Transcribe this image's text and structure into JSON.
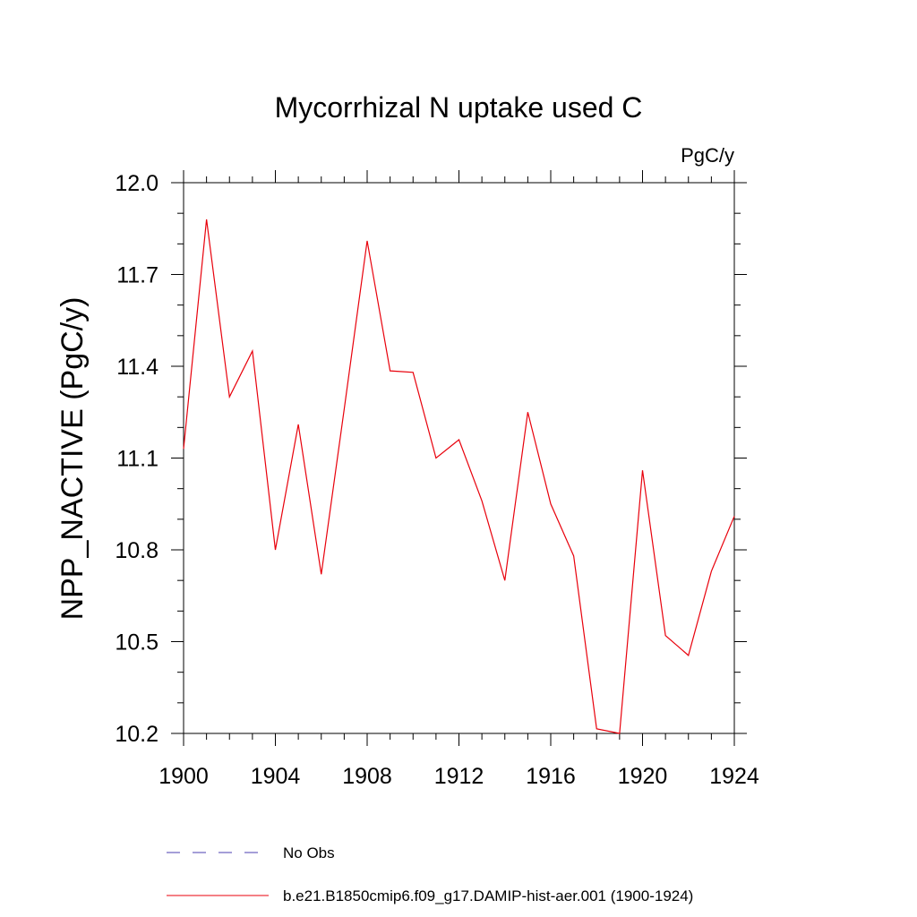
{
  "chart_data": {
    "type": "line",
    "title": "Mycorrhizal N uptake used C",
    "units_label": "PgC/y",
    "ylabel": "NPP_NACTIVE  (PgC/y)",
    "xlabel": "",
    "xlim": [
      1900,
      1924
    ],
    "ylim": [
      10.2,
      12.0
    ],
    "x_ticks": [
      1900,
      1904,
      1908,
      1912,
      1916,
      1920,
      1924
    ],
    "y_ticks": [
      10.2,
      10.5,
      10.8,
      11.1,
      11.4,
      11.7,
      12.0
    ],
    "y_tick_labels": [
      "10.2",
      "10.5",
      "10.8",
      "11.1",
      "11.4",
      "11.7",
      "12.0"
    ],
    "grid": false,
    "x": [
      1900,
      1901,
      1902,
      1903,
      1904,
      1905,
      1906,
      1907,
      1908,
      1909,
      1910,
      1911,
      1912,
      1913,
      1914,
      1915,
      1916,
      1917,
      1918,
      1919,
      1920,
      1921,
      1922,
      1923,
      1924
    ],
    "series": [
      {
        "name": "b.e21.B1850cmip6.f09_g17.DAMIP-hist-aer.001 (1900-1924)",
        "color": "#e8000b",
        "values": [
          11.13,
          11.88,
          11.3,
          11.45,
          10.8,
          11.21,
          10.72,
          11.26,
          11.81,
          11.385,
          11.38,
          11.1,
          11.16,
          10.96,
          10.7,
          11.25,
          10.95,
          10.78,
          10.215,
          10.2,
          11.06,
          10.52,
          10.455,
          10.73,
          10.91
        ]
      }
    ],
    "legend": [
      {
        "label": "No Obs",
        "style": "dashed",
        "color": "#4b3fb0"
      },
      {
        "label": "b.e21.B1850cmip6.f09_g17.DAMIP-hist-aer.001 (1900-1924)",
        "style": "solid",
        "color": "#e8000b"
      }
    ],
    "legend_placement": "bottom"
  }
}
